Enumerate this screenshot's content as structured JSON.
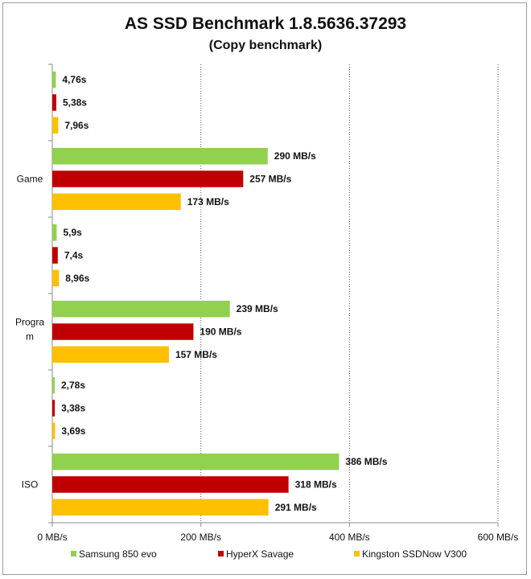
{
  "chart_data": {
    "type": "bar",
    "orientation": "horizontal",
    "title": "AS SSD  Benchmark 1.8.5636.37293",
    "subtitle": "(Copy benchmark)",
    "xlim": [
      0,
      600
    ],
    "x_ticks": [
      0,
      200,
      400,
      600
    ],
    "x_tick_labels": [
      "0 MB/s",
      "200 MB/s",
      "400 MB/s",
      "600 MB/s"
    ],
    "grid": "vertical dashed",
    "legend_position": "bottom",
    "colors": [
      "#92d050",
      "#c00000",
      "#ffc000"
    ],
    "series": [
      {
        "name": "Samsung  850 evo"
      },
      {
        "name": "HyperX Savage"
      },
      {
        "name": "Kingston  SSDNow  V300"
      }
    ],
    "groups": [
      {
        "category": "",
        "bars": [
          {
            "series": 0,
            "value": 4.76,
            "label": "4,76s"
          },
          {
            "series": 1,
            "value": 5.38,
            "label": "5,38s"
          },
          {
            "series": 2,
            "value": 7.96,
            "label": "7,96s"
          }
        ]
      },
      {
        "category": "Game",
        "bars": [
          {
            "series": 0,
            "value": 290,
            "label": "290 MB/s"
          },
          {
            "series": 1,
            "value": 257,
            "label": "257 MB/s"
          },
          {
            "series": 2,
            "value": 173,
            "label": "173 MB/s"
          }
        ]
      },
      {
        "category": "",
        "bars": [
          {
            "series": 0,
            "value": 5.9,
            "label": "5,9s"
          },
          {
            "series": 1,
            "value": 7.4,
            "label": "7,4s"
          },
          {
            "series": 2,
            "value": 8.96,
            "label": "8,96s"
          }
        ]
      },
      {
        "category": "Program",
        "bars": [
          {
            "series": 0,
            "value": 239,
            "label": "239 MB/s"
          },
          {
            "series": 1,
            "value": 190,
            "label": "190 MB/s"
          },
          {
            "series": 2,
            "value": 157,
            "label": "157 MB/s"
          }
        ]
      },
      {
        "category": "",
        "bars": [
          {
            "series": 0,
            "value": 2.78,
            "label": "2,78s"
          },
          {
            "series": 1,
            "value": 3.38,
            "label": "3,38s"
          },
          {
            "series": 2,
            "value": 3.69,
            "label": "3,69s"
          }
        ]
      },
      {
        "category": "ISO",
        "bars": [
          {
            "series": 0,
            "value": 386,
            "label": "386 MB/s"
          },
          {
            "series": 1,
            "value": 318,
            "label": "318 MB/s"
          },
          {
            "series": 2,
            "value": 291,
            "label": "291 MB/s"
          }
        ]
      }
    ]
  }
}
